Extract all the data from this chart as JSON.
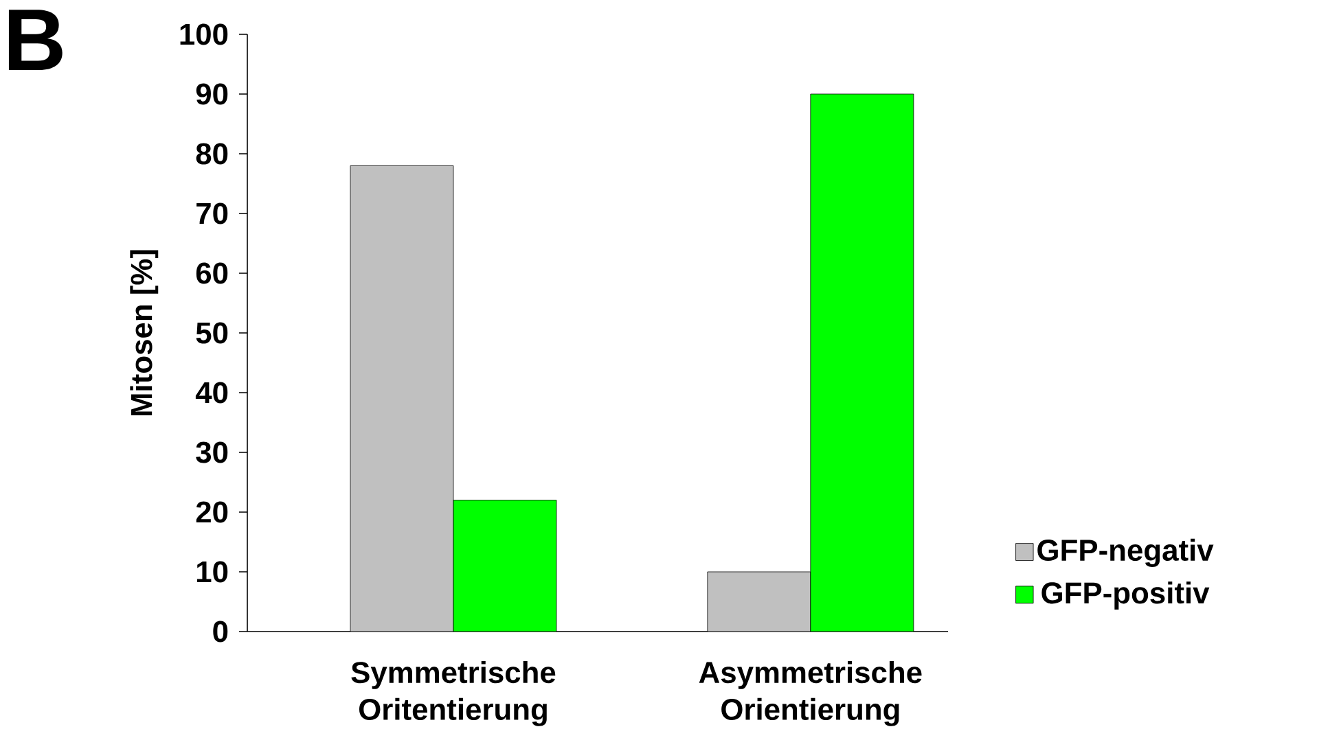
{
  "chart_data": {
    "type": "bar",
    "ylabel": "Mitosen  [%]",
    "annotations": [
      "B"
    ],
    "categories": [
      "Symmetrische Oritentierung",
      "Asymmetrische Orientierung"
    ],
    "series": [
      {
        "name": "GFP-negativ",
        "color": "#c0c0c0",
        "values": [
          78,
          10
        ]
      },
      {
        "name": "GFP-positiv",
        "color": "#00ff00",
        "values": [
          22,
          90
        ]
      }
    ],
    "ylim": [
      0,
      100
    ],
    "yticks": [
      0,
      10,
      20,
      30,
      40,
      50,
      60,
      70,
      80,
      90,
      100
    ],
    "grid": false,
    "legend": "right"
  }
}
